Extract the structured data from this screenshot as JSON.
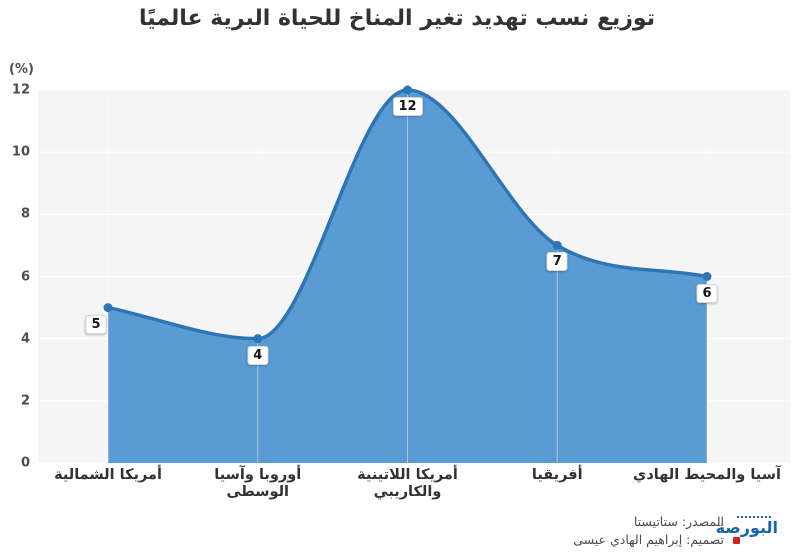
{
  "title": "توزيع نسب تهديد تغير المناخ للحياة البرية عالميًا",
  "chart_data": {
    "type": "area",
    "title": "توزيع نسب تهديد تغير المناخ للحياة البرية عالميًا",
    "unit_label": "(%)",
    "categories": [
      "أمريكا الشمالية",
      "أوروبا وآسيا الوسطى",
      "أمريكا اللاتينية والكاريبي",
      "أفريقيا",
      "آسيا والمحيط الهادي"
    ],
    "values": [
      5,
      4,
      12,
      7,
      6
    ],
    "point_labels": [
      "5",
      "4",
      "12",
      "7",
      "6"
    ],
    "y_ticks": [
      0,
      2,
      4,
      6,
      8,
      10,
      12
    ],
    "ylim": [
      0,
      12
    ],
    "xlabel": "",
    "ylabel": "(%)",
    "grid": "on",
    "legend": "none",
    "colors": {
      "area_fill": "#5b9bd4",
      "line": "#2e75b6",
      "marker": "#2e75b6",
      "plot_bg": "#f5f5f6",
      "gridline": "#ffffff",
      "label_text": "#141414"
    }
  },
  "footer": {
    "source": "المصدر: ستاتيستا",
    "design": "تصميم: إبراهيم الهادي عيسى",
    "logo_text": "البورصة"
  }
}
